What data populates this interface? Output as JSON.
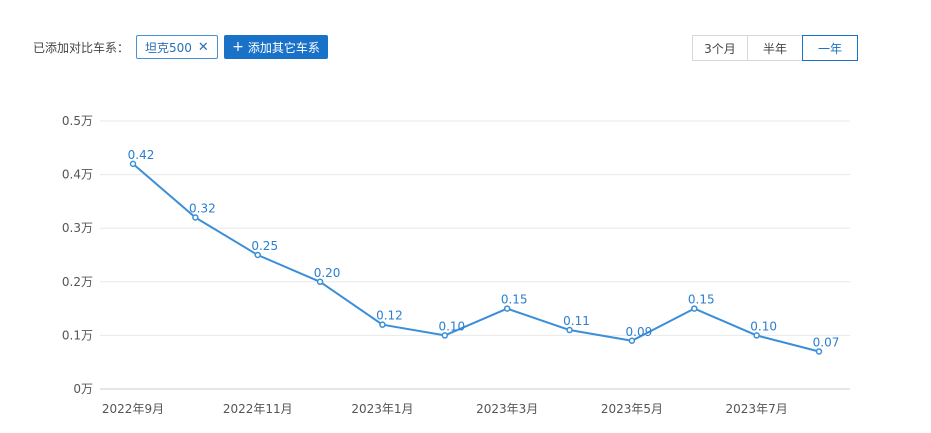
{
  "toolbar": {
    "added_label": "已添加对比车系：",
    "series_tag": "坦克500",
    "add_button": "添加其它车系",
    "range_options": [
      "3个月",
      "半年",
      "一年"
    ],
    "range_selected": "一年"
  },
  "colors": {
    "accent": "#1a72c8",
    "line": "#3a8fd8",
    "grid": "#e8e8e8"
  },
  "icons": {
    "close": "close-icon",
    "add": "plus-icon"
  },
  "chart_data": {
    "type": "line",
    "x": [
      "2022年9月",
      "2022年10月",
      "2022年11月",
      "2022年12月",
      "2023年1月",
      "2023年2月",
      "2023年3月",
      "2023年4月",
      "2023年5月",
      "2023年6月",
      "2023年7月",
      "2023年8月"
    ],
    "x_tick_labels": [
      "2022年9月",
      "2022年11月",
      "2023年1月",
      "2023年3月",
      "2023年5月",
      "2023年7月"
    ],
    "series": [
      {
        "values": [
          0.42,
          0.32,
          0.25,
          0.2,
          0.12,
          0.1,
          0.15,
          0.11,
          0.09,
          0.15,
          0.1,
          0.07
        ]
      }
    ],
    "data_labels": [
      "0.42",
      "0.32",
      "0.25",
      "0.20",
      "0.12",
      "0.10",
      "0.15",
      "0.11",
      "0.09",
      "0.15",
      "0.10",
      "0.07"
    ],
    "y_ticks": [
      {
        "value": 0,
        "label": "0万"
      },
      {
        "value": 0.1,
        "label": "0.1万"
      },
      {
        "value": 0.2,
        "label": "0.2万"
      },
      {
        "value": 0.3,
        "label": "0.3万"
      },
      {
        "value": 0.4,
        "label": "0.4万"
      },
      {
        "value": 0.5,
        "label": "0.5万"
      }
    ],
    "ylim": [
      0,
      0.5
    ],
    "grid": true,
    "legend": false
  }
}
